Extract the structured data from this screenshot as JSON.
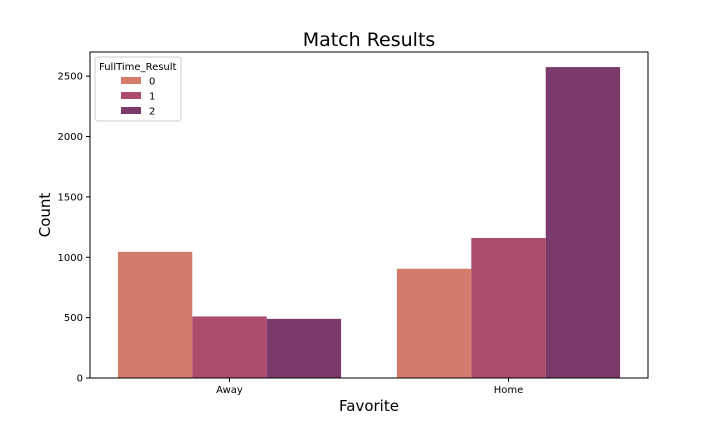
{
  "chart_data": {
    "type": "bar",
    "title": "Match Results",
    "xlabel": "Favorite",
    "ylabel": "Count",
    "categories": [
      "Away",
      "Home"
    ],
    "series": [
      {
        "name": "0",
        "color": "#d47c6b",
        "values": [
          1045,
          905
        ]
      },
      {
        "name": "1",
        "color": "#ae4c6b",
        "values": [
          510,
          1160
        ]
      },
      {
        "name": "2",
        "color": "#7c3a6a",
        "values": [
          490,
          2575
        ]
      }
    ],
    "legend_title": "FullTime_Result",
    "legend_position": "top-left",
    "ylim": [
      0,
      2700
    ],
    "yticks": [
      0,
      500,
      1000,
      1500,
      2000,
      2500
    ],
    "grid": false
  }
}
